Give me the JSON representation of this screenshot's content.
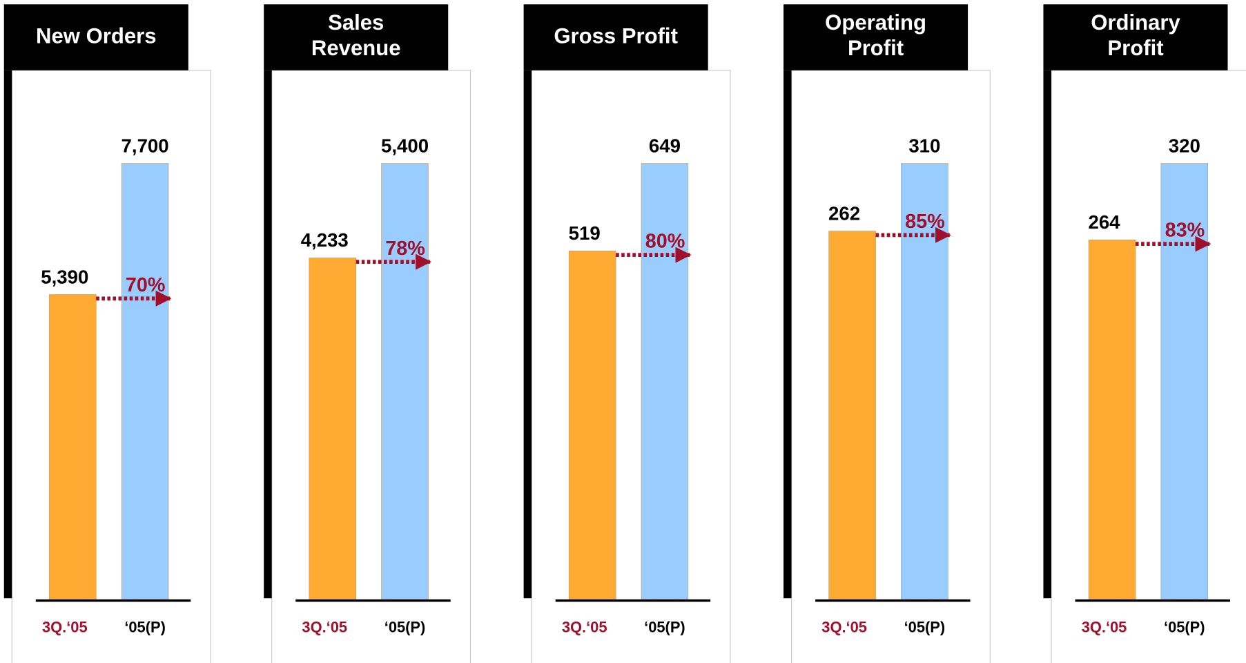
{
  "chart_data": [
    {
      "type": "bar",
      "title": [
        "New Orders"
      ],
      "categories": [
        "3Q.‘05",
        "‘05(P)"
      ],
      "values": [
        5390,
        7700
      ],
      "value_labels": [
        "5,390",
        "7,700"
      ],
      "colors": [
        "#ffaa33",
        "#99ccff"
      ],
      "annotation": "70%"
    },
    {
      "type": "bar",
      "title": [
        "Sales",
        "Revenue"
      ],
      "categories": [
        "3Q.‘05",
        "‘05(P)"
      ],
      "values": [
        4233,
        5400
      ],
      "value_labels": [
        "4,233",
        "5,400"
      ],
      "colors": [
        "#ffaa33",
        "#99ccff"
      ],
      "annotation": "78%"
    },
    {
      "type": "bar",
      "title": [
        "Gross Profit"
      ],
      "categories": [
        "3Q.‘05",
        "‘05(P)"
      ],
      "values": [
        519,
        649
      ],
      "colors": [
        "#ffaa33",
        "#99ccff"
      ],
      "annotation": "80%"
    },
    {
      "type": "bar",
      "title": [
        "Operating",
        "Profit"
      ],
      "categories": [
        "3Q.‘05",
        "‘05(P)"
      ],
      "values": [
        262,
        310
      ],
      "colors": [
        "#ffaa33",
        "#99ccff"
      ],
      "annotation": "85%"
    },
    {
      "type": "bar",
      "title": [
        "Ordinary",
        "Profit"
      ],
      "categories": [
        "3Q.‘05",
        "‘05(P)"
      ],
      "values": [
        264,
        320
      ],
      "colors": [
        "#ffaa33",
        "#99ccff"
      ],
      "annotation": "83%"
    }
  ]
}
